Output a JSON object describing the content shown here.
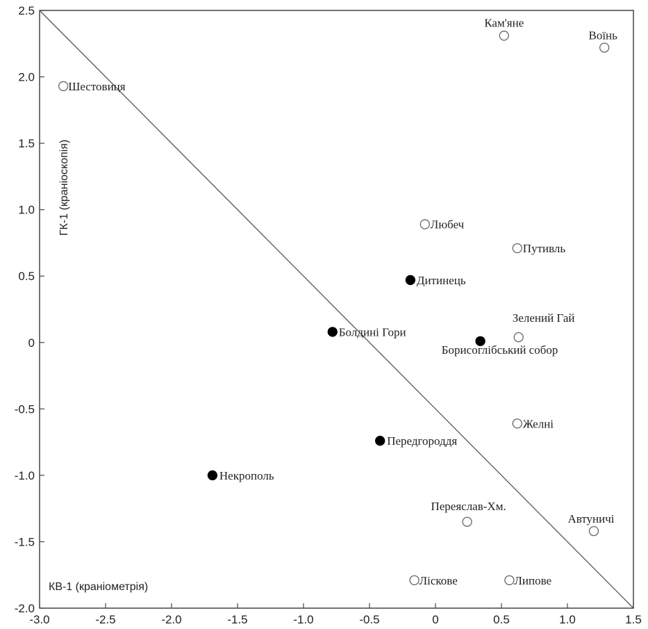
{
  "chart_data": {
    "type": "scatter",
    "title": "",
    "xlabel": "КВ-1 (краніометрія)",
    "ylabel": "ГК-1 (краніоскопія)",
    "xlim": [
      -3.0,
      1.5
    ],
    "ylim": [
      -2.0,
      2.5
    ],
    "x_ticks": [
      "-3.0",
      "-2.5",
      "-2.0",
      "-1.5",
      "-1.0",
      "-0.5",
      "0",
      "0.5",
      "1.0",
      "1.5"
    ],
    "y_ticks": [
      "2.5",
      "2.0",
      "1.5",
      "1.0",
      "0.5",
      "0",
      "-0.5",
      "-1.0",
      "-1.5",
      "-2.0"
    ],
    "grid": false,
    "reference_line": {
      "from": [
        -3.0,
        2.5
      ],
      "to": [
        1.5,
        -2.0
      ]
    },
    "points": [
      {
        "label": "Шестовиця",
        "x": -2.82,
        "y": 1.93,
        "filled": false
      },
      {
        "label": "Кам'яне",
        "x": 0.52,
        "y": 2.31,
        "filled": false
      },
      {
        "label": "Воїнь",
        "x": 1.28,
        "y": 2.22,
        "filled": false
      },
      {
        "label": "Любеч",
        "x": -0.08,
        "y": 0.89,
        "filled": false
      },
      {
        "label": "Путивль",
        "x": 0.62,
        "y": 0.71,
        "filled": false
      },
      {
        "label": "Дитинець",
        "x": -0.19,
        "y": 0.47,
        "filled": true
      },
      {
        "label": "Болдині Гори",
        "x": -0.78,
        "y": 0.08,
        "filled": true
      },
      {
        "label": "Зелений Гай",
        "x": 0.63,
        "y": 0.04,
        "filled": false
      },
      {
        "label": "Борисоглібський собор",
        "x": 0.34,
        "y": 0.01,
        "filled": true
      },
      {
        "label": "Желні",
        "x": 0.62,
        "y": -0.61,
        "filled": false
      },
      {
        "label": "Передгороддя",
        "x": -0.42,
        "y": -0.74,
        "filled": true
      },
      {
        "label": "Некрополь",
        "x": -1.69,
        "y": -1.0,
        "filled": true
      },
      {
        "label": "Переяслав-Хм.",
        "x": 0.24,
        "y": -1.35,
        "filled": false
      },
      {
        "label": "Автуничі",
        "x": 1.2,
        "y": -1.42,
        "filled": false
      },
      {
        "label": "Ліскове",
        "x": -0.16,
        "y": -1.79,
        "filled": false
      },
      {
        "label": "Липове",
        "x": 0.56,
        "y": -1.79,
        "filled": false
      }
    ]
  }
}
